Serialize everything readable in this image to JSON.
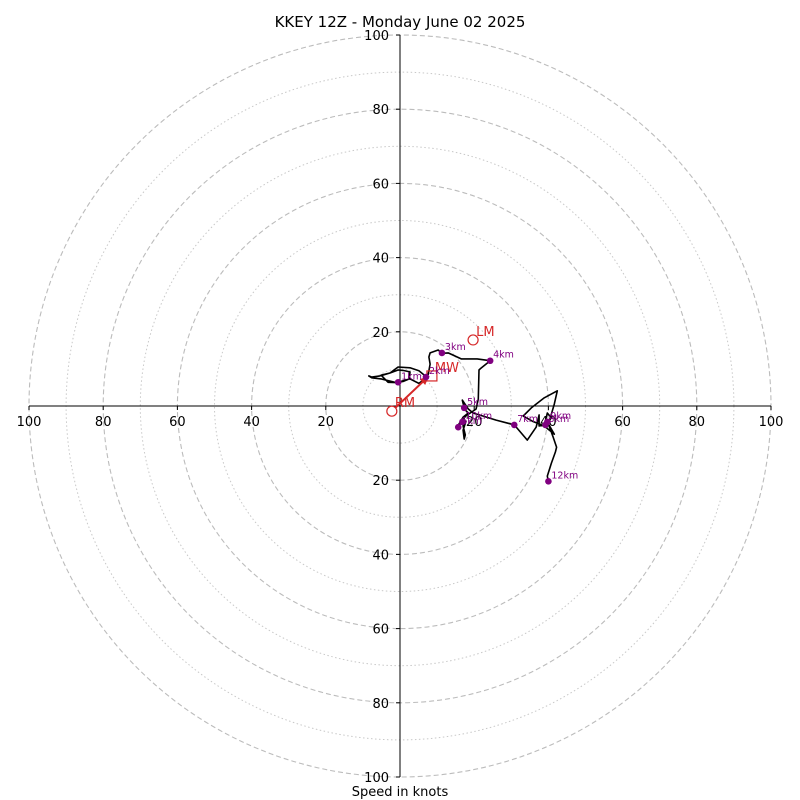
{
  "chart_data": {
    "type": "hodograph",
    "title": "KKEY 12Z - Monday June 02 2025",
    "xlabel": "Speed in knots",
    "units": "knots",
    "ring_major": [
      20,
      40,
      60,
      80,
      100
    ],
    "ring_minor": [
      10,
      30,
      50,
      70,
      90
    ],
    "x_ticks": [
      -100,
      -80,
      -60,
      -40,
      -20,
      20,
      40,
      60,
      80,
      100
    ],
    "y_ticks": [
      -100,
      -80,
      -60,
      -40,
      -20,
      20,
      40,
      60,
      80,
      100
    ],
    "xlim": [
      -100,
      100
    ],
    "ylim": [
      -100,
      100
    ],
    "grid": true,
    "trace_color": "#000000",
    "marker_color": "#800080",
    "motion_color": "#d62728",
    "trace": [
      [
        5.1,
        6.1
      ],
      [
        7.0,
        7.0
      ],
      [
        6.8,
        8.1
      ],
      [
        5.1,
        9.5
      ],
      [
        2.7,
        10.3
      ],
      [
        -0.5,
        10.5
      ],
      [
        -2.7,
        8.9
      ],
      [
        -5.1,
        8.3
      ],
      [
        -3.2,
        6.4
      ],
      [
        -1.0,
        6.3
      ],
      [
        0.8,
        6.6
      ],
      [
        2.5,
        7.3
      ],
      [
        2.7,
        9.2
      ],
      [
        0.8,
        9.6
      ],
      [
        -0.5,
        9.7
      ],
      [
        -2.7,
        8.9
      ],
      [
        -5.4,
        8.1
      ],
      [
        -7.6,
        7.8
      ],
      [
        -8.4,
        8.1
      ],
      [
        -7.6,
        7.6
      ],
      [
        -5.1,
        7.3
      ],
      [
        -2.2,
        6.6
      ],
      [
        -1.0,
        6.3
      ],
      [
        2.7,
        7.3
      ],
      [
        5.1,
        6.1
      ],
      [
        6.3,
        7.0
      ],
      [
        7.6,
        8.5
      ],
      [
        8.1,
        11.3
      ],
      [
        7.8,
        13.2
      ],
      [
        8.1,
        14.3
      ],
      [
        10.3,
        15.1
      ],
      [
        11.3,
        14.2
      ],
      [
        13.0,
        14.3
      ],
      [
        16.5,
        12.7
      ],
      [
        20.8,
        12.7
      ],
      [
        24.3,
        12.2
      ],
      [
        21.6,
        10.0
      ],
      [
        21.3,
        9.7
      ],
      [
        21.1,
        1.9
      ],
      [
        20.5,
        -0.8
      ],
      [
        17.3,
        -3.0
      ],
      [
        17.0,
        -5.4
      ],
      [
        17.6,
        -7.8
      ],
      [
        17.3,
        -8.9
      ],
      [
        17.0,
        -6.5
      ],
      [
        17.8,
        -4.1
      ],
      [
        16.8,
        -4.3
      ],
      [
        15.4,
        -5.7
      ],
      [
        17.0,
        -3.0
      ],
      [
        18.4,
        -1.9
      ],
      [
        17.6,
        -1.1
      ],
      [
        17.3,
        -0.5
      ],
      [
        16.8,
        1.6
      ],
      [
        17.3,
        0.8
      ],
      [
        18.4,
        -0.8
      ],
      [
        19.7,
        -1.9
      ],
      [
        25.9,
        -3.8
      ],
      [
        30.8,
        -5.1
      ],
      [
        34.3,
        -9.2
      ],
      [
        36.7,
        -5.7
      ],
      [
        37.5,
        -2.4
      ],
      [
        37.5,
        -5.4
      ],
      [
        39.2,
        -5.1
      ],
      [
        40.8,
        -3.2
      ],
      [
        39.7,
        -1.9
      ],
      [
        39.2,
        -4.1
      ],
      [
        39.7,
        -4.3
      ],
      [
        41.6,
        -7.6
      ],
      [
        38.9,
        -5.4
      ],
      [
        35.7,
        -4.1
      ],
      [
        33.2,
        -2.7
      ],
      [
        35.4,
        -0.5
      ],
      [
        38.9,
        2.2
      ],
      [
        42.4,
        4.1
      ],
      [
        41.6,
        0.5
      ],
      [
        40.0,
        -4.9
      ],
      [
        41.3,
        -8.4
      ],
      [
        42.2,
        -11.1
      ],
      [
        41.9,
        -12.4
      ],
      [
        40.8,
        -15.4
      ],
      [
        39.7,
        -18.9
      ],
      [
        40.0,
        -20.3
      ]
    ],
    "height_markers": [
      {
        "label": "1km",
        "x": -0.5,
        "y": 6.4
      },
      {
        "label": "2km",
        "x": 7.0,
        "y": 7.8
      },
      {
        "label": "3km",
        "x": 11.3,
        "y": 14.3
      },
      {
        "label": "4km",
        "x": 24.3,
        "y": 12.2
      },
      {
        "label": "5km",
        "x": 17.3,
        "y": -0.5
      },
      {
        "label": "6km",
        "x": 15.7,
        "y": -5.7
      },
      {
        "label": "7km",
        "x": 30.8,
        "y": -5.1
      },
      {
        "label": "8km",
        "x": 39.2,
        "y": -5.1
      },
      {
        "label": "9km",
        "x": 39.7,
        "y": -4.3
      },
      {
        "label": "10km",
        "x": 16.8,
        "y": -4.3
      },
      {
        "label": "12km",
        "x": 40.0,
        "y": -20.3
      }
    ],
    "storm_motion": [
      {
        "label": "RM",
        "x": -2.2,
        "y": -1.4,
        "shape": "circle"
      },
      {
        "label": "LM",
        "x": 19.7,
        "y": 17.8,
        "shape": "circle"
      },
      {
        "label": "MW",
        "x": 8.6,
        "y": 8.1,
        "shape": "square"
      }
    ],
    "rm_vector": {
      "from": [
        -2.2,
        -1.4
      ],
      "to": [
        7.8,
        8.1
      ]
    }
  }
}
